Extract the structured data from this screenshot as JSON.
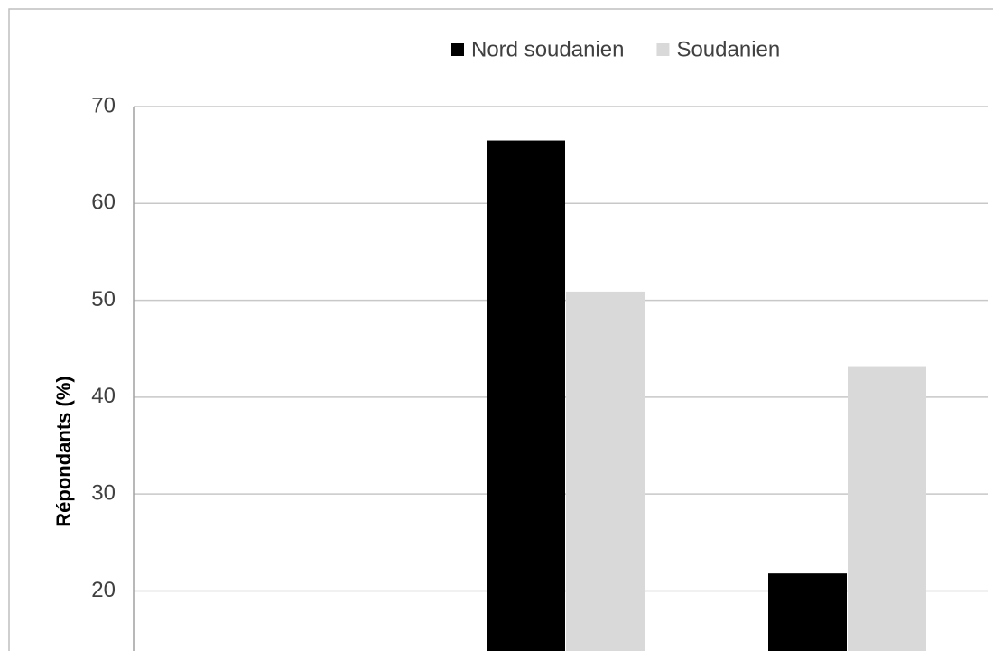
{
  "chart_data": {
    "type": "bar",
    "y_label": "Répondants (%)",
    "categories": [
      null,
      null,
      null
    ],
    "series": [
      {
        "name": "Nord soudanien",
        "color": "#000000",
        "values": [
          null,
          66.5,
          21.8
        ]
      },
      {
        "name": "Soudanien",
        "color": "#d9d9d9",
        "values": [
          null,
          50.9,
          43.2
        ]
      }
    ],
    "ylim": [
      13.8,
      70
    ],
    "yticks": [
      20,
      30,
      40,
      50,
      60,
      70
    ],
    "grid": true,
    "legend": "top"
  }
}
